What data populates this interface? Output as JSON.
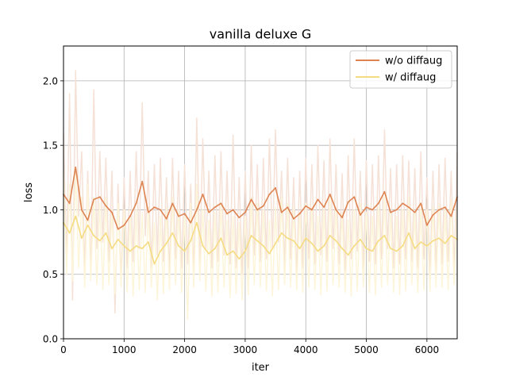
{
  "chart_data": {
    "type": "line",
    "title": "vanilla deluxe G",
    "xlabel": "iter",
    "ylabel": "loss",
    "xlim": [
      0,
      6500
    ],
    "ylim": [
      0,
      2.27
    ],
    "grid": true,
    "legend_position": "top-right",
    "x_ticks": [
      0,
      1000,
      2000,
      3000,
      4000,
      5000,
      6000
    ],
    "y_ticks": [
      0.0,
      0.5,
      1.0,
      1.5,
      2.0
    ],
    "x_tick_labels": [
      "0",
      "1000",
      "2000",
      "3000",
      "4000",
      "5000",
      "6000"
    ],
    "y_tick_labels": [
      "0.0",
      "0.5",
      "1.0",
      "1.5",
      "2.0"
    ],
    "x": [
      0,
      100,
      200,
      300,
      400,
      500,
      600,
      700,
      800,
      900,
      1000,
      1100,
      1200,
      1300,
      1400,
      1500,
      1600,
      1700,
      1800,
      1900,
      2000,
      2100,
      2200,
      2300,
      2400,
      2500,
      2600,
      2700,
      2800,
      2900,
      3000,
      3100,
      3200,
      3300,
      3400,
      3500,
      3600,
      3700,
      3800,
      3900,
      4000,
      4100,
      4200,
      4300,
      4400,
      4500,
      4600,
      4700,
      4800,
      4900,
      5000,
      5100,
      5200,
      5300,
      5400,
      5500,
      5600,
      5700,
      5800,
      5900,
      6000,
      6100,
      6200,
      6300,
      6400,
      6500
    ],
    "series": [
      {
        "name": "w/o diffaug",
        "color": "#dd8452",
        "raw_color": "#f5e1d6",
        "values": [
          1.12,
          1.05,
          1.33,
          1.0,
          0.92,
          1.08,
          1.1,
          1.03,
          0.98,
          0.85,
          0.88,
          0.95,
          1.05,
          1.22,
          0.98,
          1.02,
          1.0,
          0.93,
          1.05,
          0.95,
          0.97,
          0.9,
          1.0,
          1.12,
          0.98,
          1.02,
          1.05,
          0.97,
          1.0,
          0.94,
          0.98,
          1.08,
          1.0,
          1.03,
          1.12,
          1.17,
          0.98,
          1.02,
          0.93,
          0.97,
          1.03,
          1.0,
          1.08,
          1.02,
          1.12,
          1.0,
          0.94,
          1.06,
          1.1,
          0.96,
          1.02,
          1.0,
          1.05,
          1.14,
          0.98,
          1.0,
          1.05,
          1.02,
          0.98,
          1.05,
          0.88,
          0.96,
          1.0,
          1.02,
          0.95,
          1.1
        ],
        "raw_min": [
          0.6,
          0.3,
          0.95,
          0.55,
          0.5,
          0.7,
          0.75,
          0.6,
          0.2,
          0.45,
          0.55,
          0.6,
          0.7,
          0.8,
          0.55,
          0.65,
          0.6,
          0.5,
          0.62,
          0.55,
          0.58,
          0.5,
          0.6,
          0.7,
          0.55,
          0.6,
          0.65,
          0.58,
          0.55,
          0.5,
          0.55,
          0.65,
          0.6,
          0.62,
          0.7,
          0.75,
          0.55,
          0.62,
          0.5,
          0.55,
          0.62,
          0.58,
          0.65,
          0.6,
          0.7,
          0.58,
          0.52,
          0.62,
          0.68,
          0.55,
          0.6,
          0.58,
          0.62,
          0.7,
          0.55,
          0.58,
          0.62,
          0.6,
          0.55,
          0.62,
          0.5,
          0.55,
          0.58,
          0.6,
          0.52,
          0.65
        ],
        "raw_max": [
          1.6,
          1.9,
          2.08,
          1.45,
          1.3,
          1.93,
          1.45,
          1.4,
          1.3,
          1.2,
          1.25,
          1.3,
          1.45,
          1.83,
          1.3,
          1.35,
          1.4,
          1.25,
          1.4,
          1.3,
          1.35,
          1.2,
          1.71,
          1.55,
          1.3,
          1.42,
          1.45,
          1.3,
          1.58,
          1.25,
          1.3,
          1.5,
          1.35,
          1.4,
          1.55,
          1.62,
          1.3,
          1.4,
          1.25,
          1.3,
          1.4,
          1.35,
          1.5,
          1.38,
          1.55,
          1.35,
          1.28,
          1.42,
          1.55,
          1.3,
          1.38,
          1.35,
          1.42,
          1.62,
          1.32,
          1.35,
          1.42,
          1.38,
          1.32,
          1.45,
          1.25,
          1.3,
          1.35,
          1.4,
          1.3,
          1.45
        ]
      },
      {
        "name": "w/ diffaug",
        "color": "#f5dc82",
        "raw_color": "#fdf5d9",
        "values": [
          0.9,
          0.82,
          0.95,
          0.78,
          0.88,
          0.8,
          0.76,
          0.82,
          0.7,
          0.77,
          0.72,
          0.68,
          0.72,
          0.7,
          0.75,
          0.58,
          0.68,
          0.74,
          0.82,
          0.72,
          0.68,
          0.76,
          0.9,
          0.72,
          0.66,
          0.7,
          0.78,
          0.65,
          0.68,
          0.62,
          0.68,
          0.8,
          0.76,
          0.72,
          0.66,
          0.74,
          0.82,
          0.78,
          0.76,
          0.7,
          0.78,
          0.74,
          0.68,
          0.72,
          0.8,
          0.76,
          0.7,
          0.65,
          0.72,
          0.77,
          0.7,
          0.68,
          0.76,
          0.8,
          0.7,
          0.68,
          0.72,
          0.82,
          0.7,
          0.75,
          0.72,
          0.76,
          0.78,
          0.74,
          0.8,
          0.77
        ],
        "raw_min": [
          0.5,
          0.45,
          0.55,
          0.4,
          0.45,
          0.42,
          0.38,
          0.42,
          0.35,
          0.4,
          0.36,
          0.33,
          0.38,
          0.36,
          0.4,
          0.3,
          0.35,
          0.38,
          0.42,
          0.36,
          0.15,
          0.4,
          0.45,
          0.37,
          0.33,
          0.36,
          0.4,
          0.32,
          0.35,
          0.3,
          0.34,
          0.42,
          0.4,
          0.37,
          0.33,
          0.38,
          0.42,
          0.4,
          0.38,
          0.36,
          0.4,
          0.38,
          0.34,
          0.37,
          0.42,
          0.4,
          0.36,
          0.33,
          0.37,
          0.4,
          0.36,
          0.34,
          0.4,
          0.42,
          0.36,
          0.34,
          0.37,
          0.42,
          0.36,
          0.38,
          0.37,
          0.4,
          0.4,
          0.38,
          0.42,
          0.4
        ],
        "raw_max": [
          1.3,
          1.2,
          1.3,
          1.1,
          1.2,
          1.1,
          1.05,
          1.1,
          1.0,
          1.05,
          1.0,
          0.95,
          1.0,
          0.98,
          1.02,
          0.9,
          0.95,
          1.02,
          1.1,
          1.0,
          0.95,
          1.05,
          1.2,
          1.0,
          0.92,
          0.98,
          1.05,
          0.92,
          0.95,
          0.9,
          0.95,
          1.1,
          1.05,
          1.0,
          0.92,
          1.02,
          1.1,
          1.05,
          1.02,
          0.98,
          1.05,
          1.02,
          0.95,
          1.0,
          1.1,
          1.02,
          0.98,
          0.92,
          1.0,
          1.05,
          0.98,
          0.95,
          1.02,
          1.1,
          0.98,
          0.95,
          1.0,
          1.1,
          0.98,
          1.02,
          1.0,
          1.02,
          1.05,
          1.0,
          1.08,
          1.05
        ]
      }
    ]
  }
}
